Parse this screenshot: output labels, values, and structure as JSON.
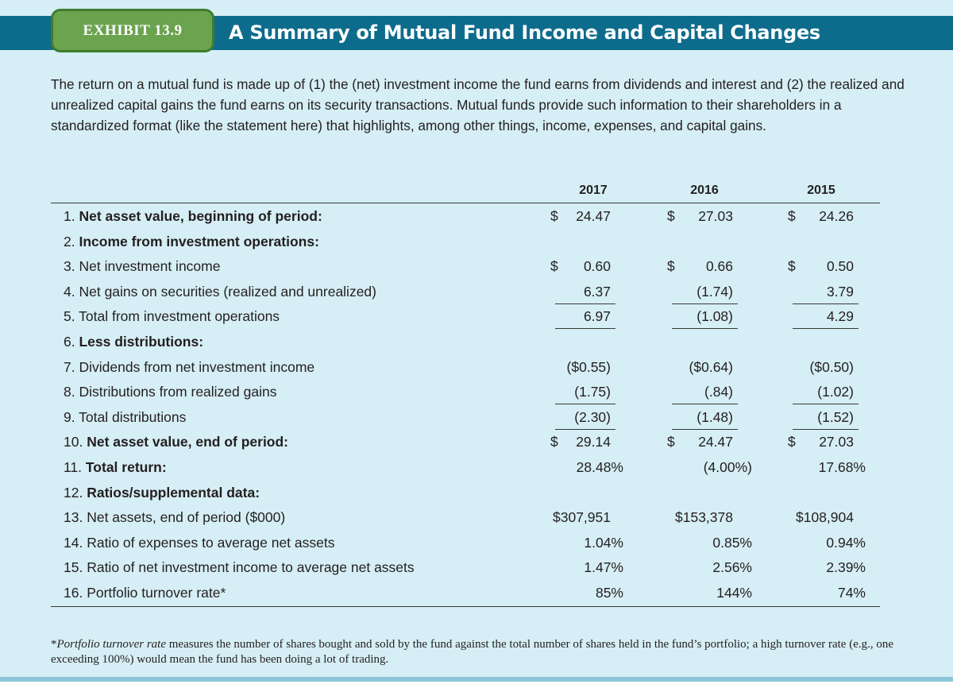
{
  "exhibit": {
    "badge": "EXHIBIT 13.9",
    "title": "A Summary of Mutual Fund Income and Capital Changes"
  },
  "intro": "The return on a mutual fund is made up of (1) the (net) investment income the fund earns from dividends and interest and (2) the realized and unrealized capital gains the fund earns on its security transactions. Mutual funds provide such information to their shareholders in a standardized format (like the statement here) that highlights, among other things, income, expenses, and capital gains.",
  "years": [
    "2017",
    "2016",
    "2015"
  ],
  "rows": [
    {
      "num": "1.",
      "label": "Net asset value, beginning of period:",
      "bold": true,
      "values": [
        {
          "d": "$",
          "v": "24.47"
        },
        {
          "d": "$",
          "v": "27.03"
        },
        {
          "d": "$",
          "v": "24.26"
        }
      ]
    },
    {
      "num": "2.",
      "label": "Income from investment operations:",
      "bold": true,
      "values": []
    },
    {
      "num": "3.",
      "label": "Net investment income",
      "bold": false,
      "values": [
        {
          "d": "$",
          "v": "0.60"
        },
        {
          "d": "$",
          "v": "0.66"
        },
        {
          "d": "$",
          "v": "0.50"
        }
      ]
    },
    {
      "num": "4.",
      "label": "Net gains on securities (realized and unrealized)",
      "bold": false,
      "values": [
        {
          "v": "6.37",
          "ul": true
        },
        {
          "v": "(1.74)",
          "ul": true
        },
        {
          "v": "3.79",
          "ul": true
        }
      ]
    },
    {
      "num": "5.",
      "label": "Total from investment operations",
      "bold": false,
      "values": [
        {
          "v": "6.97",
          "ul": true
        },
        {
          "v": "(1.08)",
          "ul": true
        },
        {
          "v": "4.29",
          "ul": true
        }
      ]
    },
    {
      "num": "6.",
      "label": "Less distributions:",
      "bold": true,
      "values": []
    },
    {
      "num": "7.",
      "label": "Dividends from net investment income",
      "bold": false,
      "values": [
        {
          "v": "($0.55)"
        },
        {
          "v": "($0.64)"
        },
        {
          "v": "($0.50)"
        }
      ]
    },
    {
      "num": "8.",
      "label": "Distributions from realized gains",
      "bold": false,
      "values": [
        {
          "v": "(1.75)",
          "ul": true
        },
        {
          "v": "(.84)",
          "ul": true
        },
        {
          "v": "(1.02)",
          "ul": true
        }
      ]
    },
    {
      "num": "9.",
      "label": "Total distributions",
      "bold": false,
      "values": [
        {
          "v": "(2.30)",
          "ul": true
        },
        {
          "v": "(1.48)",
          "ul": true
        },
        {
          "v": "(1.52)",
          "ul": true
        }
      ]
    },
    {
      "num": "10.",
      "label": "Net asset value, end of period:",
      "bold": true,
      "values": [
        {
          "d": "$",
          "v": "29.14"
        },
        {
          "d": "$",
          "v": "24.47"
        },
        {
          "d": "$",
          "v": "27.03"
        }
      ]
    },
    {
      "num": "11.",
      "label": "Total return:",
      "bold": true,
      "values": [
        {
          "v": "28.48%",
          "pct": true
        },
        {
          "v": "(4.00%)",
          "pct": true
        },
        {
          "v": "17.68%",
          "pct": true
        }
      ]
    },
    {
      "num": "12.",
      "label": "Ratios/supplemental data:",
      "bold": true,
      "values": []
    },
    {
      "num": "13.",
      "label": "Net assets, end of period ($000)",
      "bold": false,
      "values": [
        {
          "v": "$307,951"
        },
        {
          "v": "$153,378"
        },
        {
          "v": "$108,904"
        }
      ]
    },
    {
      "num": "14.",
      "label": "Ratio of expenses to average net assets",
      "bold": false,
      "values": [
        {
          "v": "1.04%",
          "pct": true
        },
        {
          "v": "0.85%",
          "pct": true
        },
        {
          "v": "0.94%",
          "pct": true
        }
      ]
    },
    {
      "num": "15.",
      "label": "Ratio of net investment income to average net assets",
      "bold": false,
      "values": [
        {
          "v": "1.47%",
          "pct": true
        },
        {
          "v": "2.56%",
          "pct": true
        },
        {
          "v": "2.39%",
          "pct": true
        }
      ]
    },
    {
      "num": "16.",
      "label": "Portfolio turnover rate*",
      "bold": false,
      "values": [
        {
          "v": "85%",
          "pct": true
        },
        {
          "v": "144%",
          "pct": true
        },
        {
          "v": "74%",
          "pct": true
        }
      ]
    }
  ],
  "footnote": {
    "term": "Portfolio turnover rate",
    "text": " measures the number of shares bought and sold by the fund against the total number of shares held in the fund’s portfolio; a high turnover rate (e.g., one exceeding 100%) would mean the fund has been doing a lot of trading."
  }
}
